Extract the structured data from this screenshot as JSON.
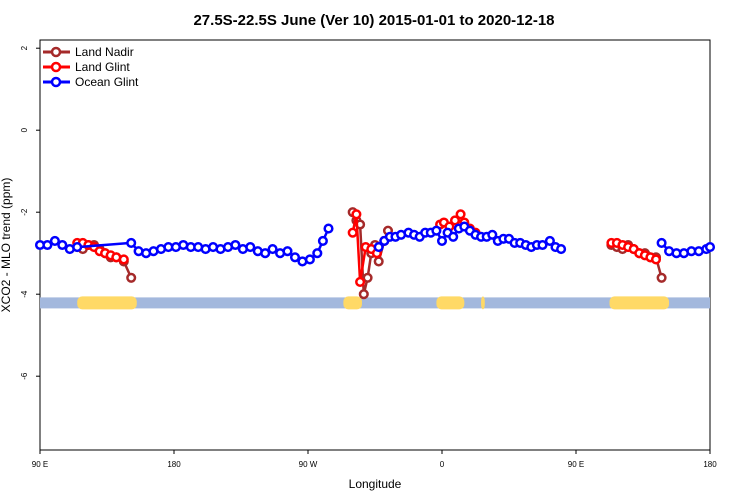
{
  "chart_data": {
    "type": "line",
    "title": "27.5S-22.5S June (Ver 10)   2015-01-01 to 2020-12-18",
    "xlabel": "Longitude",
    "ylabel": "XCO2 - MLO trend (ppm)",
    "xlim": [
      90,
      450
    ],
    "ylim": [
      -7.8,
      2.2
    ],
    "x_ticks": [
      {
        "value": 90,
        "label": "90 E"
      },
      {
        "value": 162,
        "label": "180"
      },
      {
        "value": 234,
        "label": "90 W"
      },
      {
        "value": 306,
        "label": "0"
      },
      {
        "value": 378,
        "label": "90 E"
      },
      {
        "value": 450,
        "label": "180"
      }
    ],
    "y_ticks": [
      {
        "value": 2,
        "label": "2"
      },
      {
        "value": 0,
        "label": "0"
      },
      {
        "value": -2,
        "label": "-2"
      },
      {
        "value": -4,
        "label": "-4"
      },
      {
        "value": -6,
        "label": "-6"
      }
    ],
    "legend": {
      "position": "top-left"
    },
    "land_band": {
      "y": -4.2,
      "ocean_color": "#a3b8dd",
      "land_color": "#ffd966",
      "land_ranges": [
        [
          110,
          142
        ],
        [
          253,
          263
        ],
        [
          303,
          318
        ],
        [
          327,
          329
        ],
        [
          396,
          428
        ]
      ]
    },
    "series": [
      {
        "name": "Land Nadir",
        "color": "#a52a2a",
        "segments": [
          [
            [
              110,
              -2.85
            ],
            [
              113,
              -2.9
            ],
            [
              116,
              -2.8
            ],
            [
              119,
              -2.8
            ],
            [
              122,
              -2.9
            ],
            [
              125,
              -3.0
            ],
            [
              128,
              -3.1
            ],
            [
              131,
              -3.1
            ],
            [
              135,
              -3.2
            ],
            [
              139,
              -3.6
            ]
          ],
          [
            [
              258,
              -2.0
            ],
            [
              260,
              -2.2
            ],
            [
              262,
              -2.3
            ],
            [
              264,
              -4.0
            ],
            [
              266,
              -3.6
            ],
            [
              268,
              -3.0
            ],
            [
              270,
              -2.8
            ],
            [
              272,
              -3.2
            ],
            [
              275,
              -2.7
            ],
            [
              277,
              -2.45
            ]
          ],
          [
            [
              397,
              -2.8
            ],
            [
              400,
              -2.85
            ],
            [
              403,
              -2.9
            ],
            [
              406,
              -2.8
            ],
            [
              409,
              -2.9
            ],
            [
              412,
              -3.0
            ],
            [
              415,
              -3.0
            ],
            [
              418,
              -3.1
            ],
            [
              421,
              -3.1
            ],
            [
              424,
              -3.6
            ]
          ]
        ]
      },
      {
        "name": "Land Glint",
        "color": "#ff0000",
        "segments": [
          [
            [
              110,
              -2.75
            ],
            [
              113,
              -2.75
            ],
            [
              116,
              -2.8
            ],
            [
              119,
              -2.85
            ],
            [
              122,
              -2.95
            ],
            [
              125,
              -3.0
            ],
            [
              128,
              -3.05
            ],
            [
              131,
              -3.1
            ],
            [
              135,
              -3.15
            ]
          ],
          [
            [
              258,
              -2.5
            ],
            [
              260,
              -2.05
            ],
            [
              262,
              -3.7
            ],
            [
              265,
              -2.85
            ],
            [
              268,
              -2.9
            ],
            [
              271,
              -3.0
            ]
          ],
          [
            [
              305,
              -2.3
            ],
            [
              307,
              -2.25
            ],
            [
              310,
              -2.35
            ],
            [
              313,
              -2.2
            ],
            [
              316,
              -2.05
            ],
            [
              318,
              -2.25
            ],
            [
              321,
              -2.4
            ],
            [
              324,
              -2.5
            ]
          ],
          [
            [
              397,
              -2.75
            ],
            [
              400,
              -2.75
            ],
            [
              403,
              -2.8
            ],
            [
              406,
              -2.85
            ],
            [
              409,
              -2.9
            ],
            [
              412,
              -3.0
            ],
            [
              415,
              -3.05
            ],
            [
              418,
              -3.1
            ],
            [
              421,
              -3.15
            ]
          ]
        ]
      },
      {
        "name": "Ocean Glint",
        "color": "#0000ff",
        "segments": [
          [
            [
              90,
              -2.8
            ],
            [
              94,
              -2.8
            ],
            [
              98,
              -2.7
            ],
            [
              102,
              -2.8
            ],
            [
              106,
              -2.9
            ],
            [
              110,
              -2.85
            ],
            [
              139,
              -2.75
            ],
            [
              143,
              -2.95
            ],
            [
              147,
              -3.0
            ],
            [
              151,
              -2.95
            ],
            [
              155,
              -2.9
            ],
            [
              159,
              -2.85
            ],
            [
              163,
              -2.85
            ],
            [
              167,
              -2.8
            ],
            [
              171,
              -2.85
            ],
            [
              175,
              -2.85
            ],
            [
              179,
              -2.9
            ],
            [
              183,
              -2.85
            ],
            [
              187,
              -2.9
            ],
            [
              191,
              -2.85
            ],
            [
              195,
              -2.8
            ],
            [
              199,
              -2.9
            ],
            [
              203,
              -2.85
            ],
            [
              207,
              -2.95
            ],
            [
              211,
              -3.0
            ],
            [
              215,
              -2.9
            ],
            [
              219,
              -3.0
            ],
            [
              223,
              -2.95
            ],
            [
              227,
              -3.1
            ],
            [
              231,
              -3.2
            ],
            [
              235,
              -3.15
            ],
            [
              239,
              -3.0
            ],
            [
              242,
              -2.7
            ],
            [
              245,
              -2.4
            ]
          ],
          [
            [
              272,
              -2.85
            ],
            [
              275,
              -2.7
            ],
            [
              278,
              -2.6
            ],
            [
              281,
              -2.6
            ],
            [
              284,
              -2.55
            ],
            [
              288,
              -2.5
            ],
            [
              291,
              -2.55
            ],
            [
              294,
              -2.6
            ],
            [
              297,
              -2.5
            ],
            [
              300,
              -2.5
            ],
            [
              303,
              -2.45
            ],
            [
              306,
              -2.7
            ],
            [
              309,
              -2.5
            ],
            [
              312,
              -2.6
            ],
            [
              315,
              -2.4
            ],
            [
              318,
              -2.35
            ],
            [
              321,
              -2.45
            ],
            [
              324,
              -2.55
            ],
            [
              327,
              -2.6
            ],
            [
              330,
              -2.6
            ],
            [
              333,
              -2.55
            ],
            [
              336,
              -2.7
            ],
            [
              339,
              -2.65
            ],
            [
              342,
              -2.65
            ],
            [
              345,
              -2.75
            ],
            [
              348,
              -2.75
            ],
            [
              351,
              -2.8
            ],
            [
              354,
              -2.85
            ],
            [
              357,
              -2.8
            ],
            [
              360,
              -2.8
            ],
            [
              364,
              -2.7
            ],
            [
              367,
              -2.85
            ],
            [
              370,
              -2.9
            ]
          ],
          [
            [
              424,
              -2.75
            ],
            [
              428,
              -2.95
            ],
            [
              432,
              -3.0
            ],
            [
              436,
              -3.0
            ],
            [
              440,
              -2.95
            ],
            [
              444,
              -2.95
            ],
            [
              448,
              -2.9
            ],
            [
              450,
              -2.85
            ]
          ]
        ]
      }
    ]
  }
}
